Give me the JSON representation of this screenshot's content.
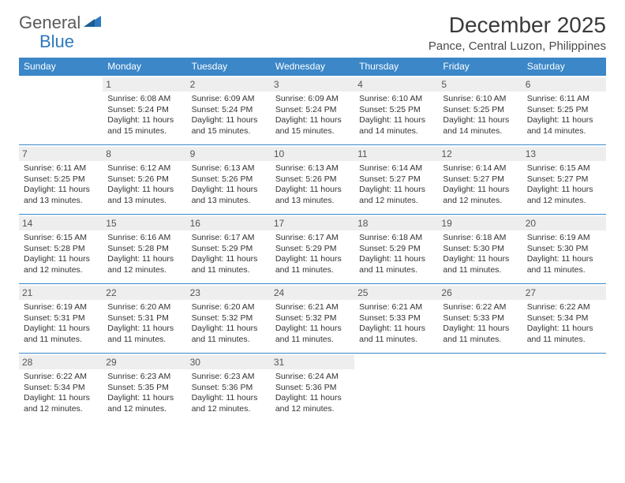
{
  "branding": {
    "general": "General",
    "blue": "Blue"
  },
  "title": "December 2025",
  "location": "Pance, Central Luzon, Philippines",
  "colors": {
    "header_bg": "#3b87c8",
    "header_fg": "#ffffff",
    "daynum_bg": "#eeeeee",
    "border": "#3b87c8",
    "brand_blue": "#2f78bd",
    "brand_gray": "#5a5a5a"
  },
  "weekdays": [
    "Sunday",
    "Monday",
    "Tuesday",
    "Wednesday",
    "Thursday",
    "Friday",
    "Saturday"
  ],
  "startOffset": 1,
  "days": [
    {
      "n": 1,
      "sunrise": "6:08 AM",
      "sunset": "5:24 PM",
      "daylight": "11 hours and 15 minutes."
    },
    {
      "n": 2,
      "sunrise": "6:09 AM",
      "sunset": "5:24 PM",
      "daylight": "11 hours and 15 minutes."
    },
    {
      "n": 3,
      "sunrise": "6:09 AM",
      "sunset": "5:24 PM",
      "daylight": "11 hours and 15 minutes."
    },
    {
      "n": 4,
      "sunrise": "6:10 AM",
      "sunset": "5:25 PM",
      "daylight": "11 hours and 14 minutes."
    },
    {
      "n": 5,
      "sunrise": "6:10 AM",
      "sunset": "5:25 PM",
      "daylight": "11 hours and 14 minutes."
    },
    {
      "n": 6,
      "sunrise": "6:11 AM",
      "sunset": "5:25 PM",
      "daylight": "11 hours and 14 minutes."
    },
    {
      "n": 7,
      "sunrise": "6:11 AM",
      "sunset": "5:25 PM",
      "daylight": "11 hours and 13 minutes."
    },
    {
      "n": 8,
      "sunrise": "6:12 AM",
      "sunset": "5:26 PM",
      "daylight": "11 hours and 13 minutes."
    },
    {
      "n": 9,
      "sunrise": "6:13 AM",
      "sunset": "5:26 PM",
      "daylight": "11 hours and 13 minutes."
    },
    {
      "n": 10,
      "sunrise": "6:13 AM",
      "sunset": "5:26 PM",
      "daylight": "11 hours and 13 minutes."
    },
    {
      "n": 11,
      "sunrise": "6:14 AM",
      "sunset": "5:27 PM",
      "daylight": "11 hours and 12 minutes."
    },
    {
      "n": 12,
      "sunrise": "6:14 AM",
      "sunset": "5:27 PM",
      "daylight": "11 hours and 12 minutes."
    },
    {
      "n": 13,
      "sunrise": "6:15 AM",
      "sunset": "5:27 PM",
      "daylight": "11 hours and 12 minutes."
    },
    {
      "n": 14,
      "sunrise": "6:15 AM",
      "sunset": "5:28 PM",
      "daylight": "11 hours and 12 minutes."
    },
    {
      "n": 15,
      "sunrise": "6:16 AM",
      "sunset": "5:28 PM",
      "daylight": "11 hours and 12 minutes."
    },
    {
      "n": 16,
      "sunrise": "6:17 AM",
      "sunset": "5:29 PM",
      "daylight": "11 hours and 11 minutes."
    },
    {
      "n": 17,
      "sunrise": "6:17 AM",
      "sunset": "5:29 PM",
      "daylight": "11 hours and 11 minutes."
    },
    {
      "n": 18,
      "sunrise": "6:18 AM",
      "sunset": "5:29 PM",
      "daylight": "11 hours and 11 minutes."
    },
    {
      "n": 19,
      "sunrise": "6:18 AM",
      "sunset": "5:30 PM",
      "daylight": "11 hours and 11 minutes."
    },
    {
      "n": 20,
      "sunrise": "6:19 AM",
      "sunset": "5:30 PM",
      "daylight": "11 hours and 11 minutes."
    },
    {
      "n": 21,
      "sunrise": "6:19 AM",
      "sunset": "5:31 PM",
      "daylight": "11 hours and 11 minutes."
    },
    {
      "n": 22,
      "sunrise": "6:20 AM",
      "sunset": "5:31 PM",
      "daylight": "11 hours and 11 minutes."
    },
    {
      "n": 23,
      "sunrise": "6:20 AM",
      "sunset": "5:32 PM",
      "daylight": "11 hours and 11 minutes."
    },
    {
      "n": 24,
      "sunrise": "6:21 AM",
      "sunset": "5:32 PM",
      "daylight": "11 hours and 11 minutes."
    },
    {
      "n": 25,
      "sunrise": "6:21 AM",
      "sunset": "5:33 PM",
      "daylight": "11 hours and 11 minutes."
    },
    {
      "n": 26,
      "sunrise": "6:22 AM",
      "sunset": "5:33 PM",
      "daylight": "11 hours and 11 minutes."
    },
    {
      "n": 27,
      "sunrise": "6:22 AM",
      "sunset": "5:34 PM",
      "daylight": "11 hours and 11 minutes."
    },
    {
      "n": 28,
      "sunrise": "6:22 AM",
      "sunset": "5:34 PM",
      "daylight": "11 hours and 12 minutes."
    },
    {
      "n": 29,
      "sunrise": "6:23 AM",
      "sunset": "5:35 PM",
      "daylight": "11 hours and 12 minutes."
    },
    {
      "n": 30,
      "sunrise": "6:23 AM",
      "sunset": "5:36 PM",
      "daylight": "11 hours and 12 minutes."
    },
    {
      "n": 31,
      "sunrise": "6:24 AM",
      "sunset": "5:36 PM",
      "daylight": "11 hours and 12 minutes."
    }
  ],
  "labels": {
    "sunrise": "Sunrise:",
    "sunset": "Sunset:",
    "daylight": "Daylight:"
  }
}
